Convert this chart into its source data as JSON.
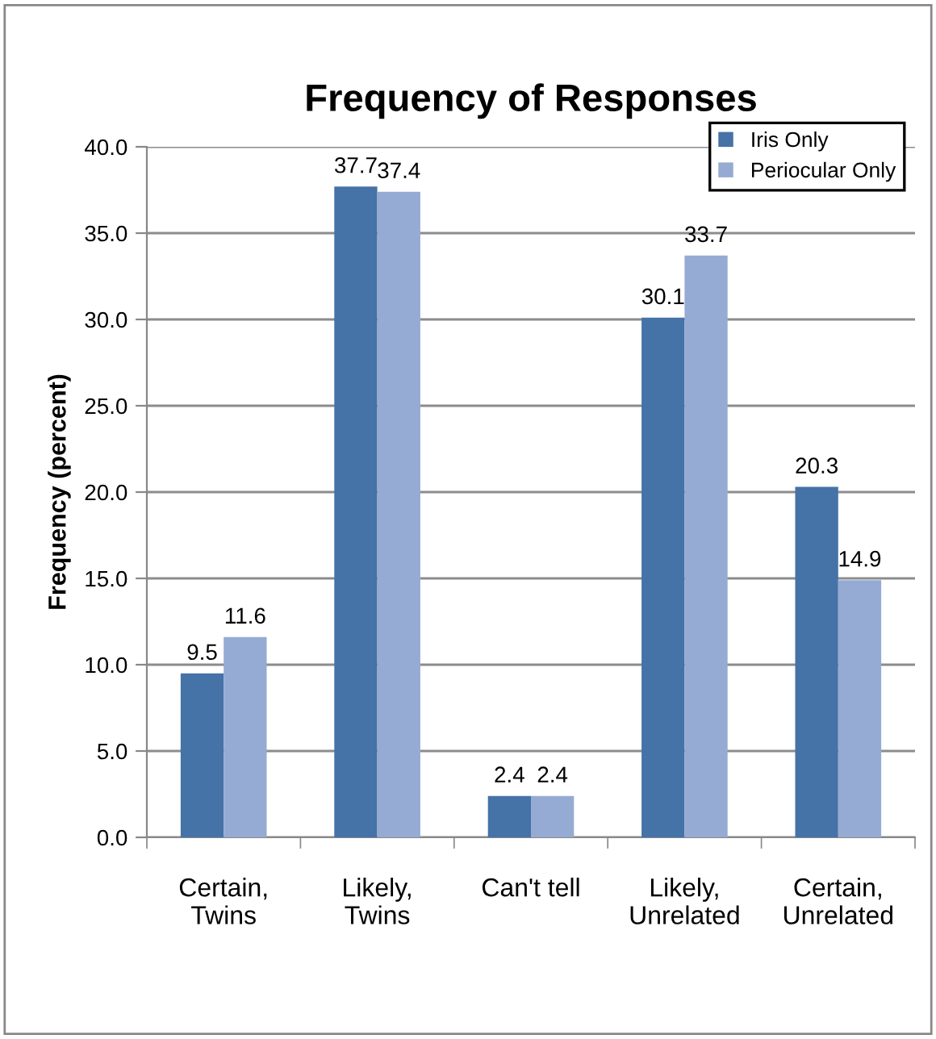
{
  "chart_data": {
    "type": "bar",
    "title": "Frequency of Responses",
    "ylabel": "Frequency (percent)",
    "categories": [
      "Certain,\nTwins",
      "Likely,\nTwins",
      "Can't tell",
      "Likely,\nUnrelated",
      "Certain,\nUnrelated"
    ],
    "series": [
      {
        "name": "Iris Only",
        "color": "#4572a7",
        "values": [
          9.5,
          37.7,
          2.4,
          30.1,
          20.3
        ]
      },
      {
        "name": "Periocular Only",
        "color": "#95abd3",
        "values": [
          11.6,
          37.4,
          2.4,
          33.7,
          14.9
        ]
      }
    ],
    "ylim": [
      0,
      40
    ],
    "yticks": [
      {
        "value": 0,
        "label": "0.0"
      },
      {
        "value": 5,
        "label": "5.0"
      },
      {
        "value": 10,
        "label": "10.0"
      },
      {
        "value": 15,
        "label": "15.0"
      },
      {
        "value": 20,
        "label": "20.0"
      },
      {
        "value": 25,
        "label": "25.0"
      },
      {
        "value": 30,
        "label": "30.0"
      },
      {
        "value": 35,
        "label": "35.0"
      },
      {
        "value": 40,
        "label": "40.0"
      }
    ],
    "grid": "y",
    "legend": "top right",
    "data_labels": true
  }
}
